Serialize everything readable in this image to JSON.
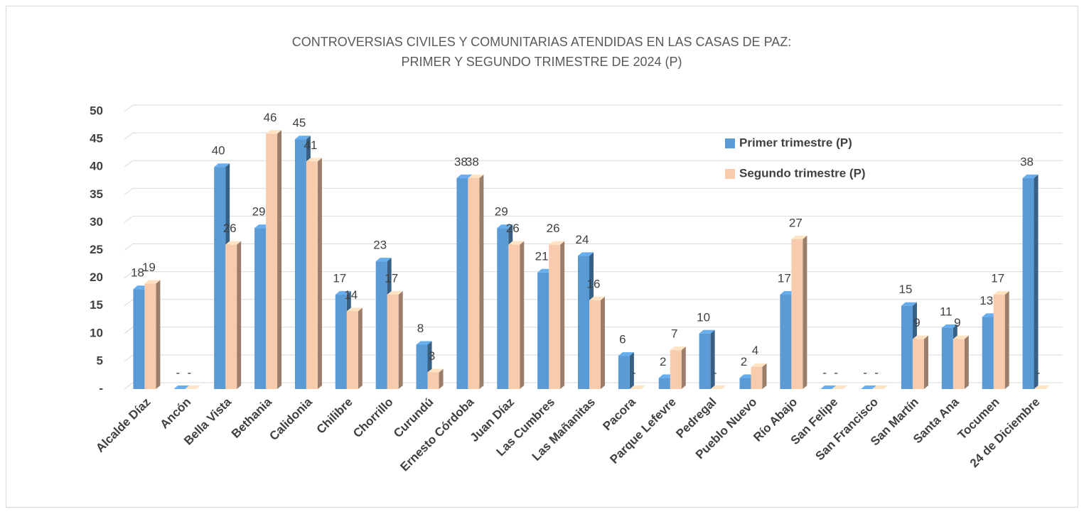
{
  "chart_data": {
    "type": "bar3d",
    "title": "CONTROVERSIAS CIVILES Y COMUNITARIAS ATENDIDAS EN LAS CASAS DE PAZ:",
    "subtitle": "PRIMER Y SEGUNDO TRIMESTRE DE 2024 (P)",
    "categories": [
      "Alcalde Díaz",
      "Ancón",
      "Bella Vista",
      "Bethania",
      "Calidonia",
      "Chilibre",
      "Chorrillo",
      "Curundú",
      "Ernesto Córdoba",
      "Juan Díaz",
      "Las Cumbres",
      "Las Mañanitas",
      "Pacora",
      "Parque Lefevre",
      "Pedregal",
      "Pueblo Nuevo",
      "Río Abajo",
      "San Felipe",
      "San Francisco",
      "San Martín",
      "Santa Ana",
      "Tocumen",
      "24 de Diciembre"
    ],
    "series": [
      {
        "name": "Primer trimestre (P)",
        "color": "#5b9bd5",
        "values": [
          18,
          0,
          40,
          29,
          45,
          17,
          23,
          8,
          38,
          29,
          21,
          24,
          6,
          2,
          10,
          2,
          17,
          0,
          0,
          15,
          11,
          13,
          38
        ],
        "value_labels": [
          "18",
          "-",
          "40",
          "29",
          "45",
          "17",
          "23",
          "8",
          "38",
          "29",
          "21",
          "24",
          "6",
          "2",
          "10",
          "2",
          "17",
          "-",
          "-",
          "15",
          "11",
          "13",
          "38"
        ]
      },
      {
        "name": "Segundo trimestre (P)",
        "color": "#f8cbad",
        "values": [
          19,
          0,
          26,
          46,
          41,
          14,
          17,
          3,
          38,
          26,
          26,
          16,
          0,
          7,
          0,
          4,
          27,
          0,
          0,
          9,
          9,
          17,
          0
        ],
        "value_labels": [
          "19",
          "-",
          "26",
          "46",
          "41",
          "14",
          "17",
          "3",
          "38",
          "26",
          "26",
          "16",
          "-",
          "7",
          "-",
          "4",
          "27",
          "-",
          "-",
          "9",
          "9",
          "17",
          "-"
        ]
      }
    ],
    "ylim": [
      0,
      50
    ],
    "yticks": [
      {
        "value": 0,
        "label": "-"
      },
      5,
      10,
      15,
      20,
      25,
      30,
      35,
      40,
      45,
      50
    ],
    "grid": true
  }
}
